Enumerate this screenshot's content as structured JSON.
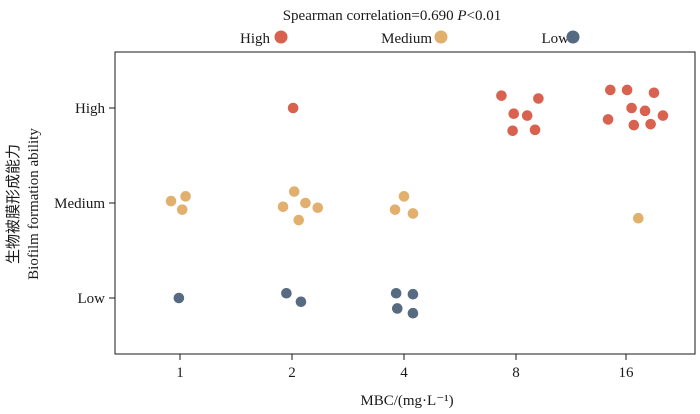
{
  "chart_data": {
    "type": "scatter",
    "title_prefix": "Spearman correlation=0.690 ",
    "title_p": "P",
    "title_suffix": "<0.01",
    "xlabel": "MBC/(mg·L⁻¹)",
    "ylabel_cn": "生物被膜形成能力",
    "ylabel_en": "Biofilm formation ability",
    "x_categories": [
      "1",
      "2",
      "4",
      "8",
      "16"
    ],
    "y_categories": [
      "Low",
      "Medium",
      "High"
    ],
    "legend": [
      {
        "name": "High",
        "color": "#d9614f"
      },
      {
        "name": "Medium",
        "color": "#e2b06e"
      },
      {
        "name": "Low",
        "color": "#566a82"
      }
    ],
    "legend_position": "top",
    "grid": false,
    "points": [
      {
        "x": "1",
        "y": "Medium",
        "color": "#e2b06e",
        "jx": -0.08,
        "jy": 0.02
      },
      {
        "x": "1",
        "y": "Medium",
        "color": "#e2b06e",
        "jx": 0.05,
        "jy": 0.07
      },
      {
        "x": "1",
        "y": "Medium",
        "color": "#e2b06e",
        "jx": 0.02,
        "jy": -0.07
      },
      {
        "x": "1",
        "y": "Low",
        "color": "#566a82",
        "jx": -0.01,
        "jy": 0.0
      },
      {
        "x": "2",
        "y": "High",
        "color": "#d9614f",
        "jx": 0.01,
        "jy": 0.0
      },
      {
        "x": "2",
        "y": "Medium",
        "color": "#e2b06e",
        "jx": 0.02,
        "jy": 0.12
      },
      {
        "x": "2",
        "y": "Medium",
        "color": "#e2b06e",
        "jx": -0.08,
        "jy": -0.04
      },
      {
        "x": "2",
        "y": "Medium",
        "color": "#e2b06e",
        "jx": 0.12,
        "jy": 0.0
      },
      {
        "x": "2",
        "y": "Medium",
        "color": "#e2b06e",
        "jx": 0.23,
        "jy": -0.05
      },
      {
        "x": "2",
        "y": "Medium",
        "color": "#e2b06e",
        "jx": 0.06,
        "jy": -0.18
      },
      {
        "x": "2",
        "y": "Low",
        "color": "#566a82",
        "jx": -0.05,
        "jy": 0.05
      },
      {
        "x": "2",
        "y": "Low",
        "color": "#566a82",
        "jx": 0.08,
        "jy": -0.04
      },
      {
        "x": "4",
        "y": "Medium",
        "color": "#e2b06e",
        "jx": 0.0,
        "jy": 0.07
      },
      {
        "x": "4",
        "y": "Medium",
        "color": "#e2b06e",
        "jx": -0.08,
        "jy": -0.07
      },
      {
        "x": "4",
        "y": "Medium",
        "color": "#e2b06e",
        "jx": 0.08,
        "jy": -0.11
      },
      {
        "x": "4",
        "y": "Low",
        "color": "#566a82",
        "jx": -0.07,
        "jy": 0.05
      },
      {
        "x": "4",
        "y": "Low",
        "color": "#566a82",
        "jx": 0.08,
        "jy": 0.04
      },
      {
        "x": "4",
        "y": "Low",
        "color": "#566a82",
        "jx": -0.06,
        "jy": -0.11
      },
      {
        "x": "4",
        "y": "Low",
        "color": "#566a82",
        "jx": 0.08,
        "jy": -0.16
      },
      {
        "x": "8",
        "y": "High",
        "color": "#d9614f",
        "jx": -0.13,
        "jy": 0.13
      },
      {
        "x": "8",
        "y": "High",
        "color": "#d9614f",
        "jx": 0.2,
        "jy": 0.1
      },
      {
        "x": "8",
        "y": "High",
        "color": "#d9614f",
        "jx": -0.02,
        "jy": -0.06
      },
      {
        "x": "8",
        "y": "High",
        "color": "#d9614f",
        "jx": 0.1,
        "jy": -0.08
      },
      {
        "x": "8",
        "y": "High",
        "color": "#d9614f",
        "jx": -0.03,
        "jy": -0.24
      },
      {
        "x": "8",
        "y": "High",
        "color": "#d9614f",
        "jx": 0.17,
        "jy": -0.23
      },
      {
        "x": "16",
        "y": "High",
        "color": "#d9614f",
        "jx": -0.14,
        "jy": 0.19
      },
      {
        "x": "16",
        "y": "High",
        "color": "#d9614f",
        "jx": 0.01,
        "jy": 0.19
      },
      {
        "x": "16",
        "y": "High",
        "color": "#d9614f",
        "jx": 0.25,
        "jy": 0.16
      },
      {
        "x": "16",
        "y": "High",
        "color": "#d9614f",
        "jx": 0.05,
        "jy": 0.0
      },
      {
        "x": "16",
        "y": "High",
        "color": "#d9614f",
        "jx": 0.17,
        "jy": -0.03
      },
      {
        "x": "16",
        "y": "High",
        "color": "#d9614f",
        "jx": -0.16,
        "jy": -0.12
      },
      {
        "x": "16",
        "y": "High",
        "color": "#d9614f",
        "jx": 0.33,
        "jy": -0.08
      },
      {
        "x": "16",
        "y": "High",
        "color": "#d9614f",
        "jx": 0.07,
        "jy": -0.18
      },
      {
        "x": "16",
        "y": "High",
        "color": "#d9614f",
        "jx": 0.22,
        "jy": -0.17
      },
      {
        "x": "16",
        "y": "Medium",
        "color": "#e2b06e",
        "jx": 0.11,
        "jy": -0.16
      }
    ]
  }
}
